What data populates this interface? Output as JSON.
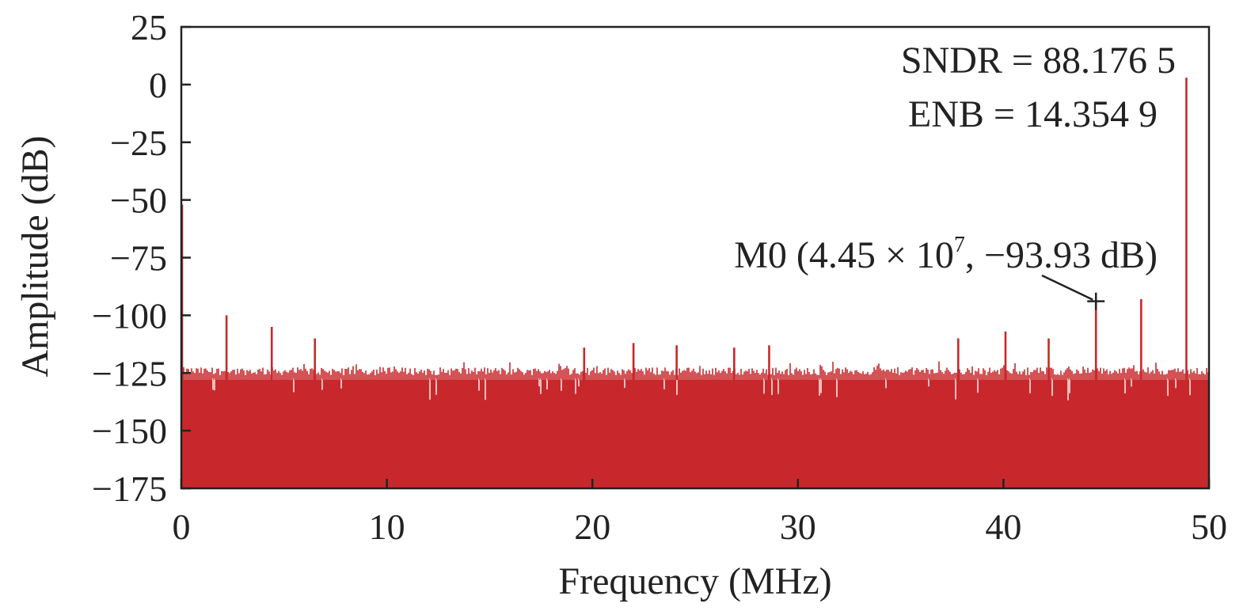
{
  "chart_data": {
    "type": "bar",
    "title": "",
    "xlabel": "Frequency (MHz)",
    "ylabel": "Amplitude (dB)",
    "xlim": [
      0,
      50
    ],
    "ylim": [
      -175,
      25
    ],
    "x_ticks": [
      0,
      10,
      20,
      30,
      40,
      50
    ],
    "y_ticks": [
      25,
      0,
      -25,
      -50,
      -75,
      -100,
      -125,
      -150,
      -175
    ],
    "x_tick_labels": [
      "0",
      "10",
      "20",
      "30",
      "40",
      "50"
    ],
    "y_tick_labels": [
      "25",
      "0",
      "−25",
      "−50",
      "−75",
      "−100",
      "−125",
      "−150",
      "−175"
    ],
    "grid": false,
    "bar_color": "#c8282b",
    "noise_floor_db": -128,
    "spurs": [
      {
        "x": 0.0,
        "y": -52
      },
      {
        "x": 2.2,
        "y": -100
      },
      {
        "x": 4.4,
        "y": -105
      },
      {
        "x": 6.5,
        "y": -110
      },
      {
        "x": 19.6,
        "y": -114
      },
      {
        "x": 22.0,
        "y": -112
      },
      {
        "x": 24.1,
        "y": -113
      },
      {
        "x": 26.9,
        "y": -114
      },
      {
        "x": 28.6,
        "y": -113
      },
      {
        "x": 37.8,
        "y": -110
      },
      {
        "x": 40.1,
        "y": -107
      },
      {
        "x": 42.2,
        "y": -110
      },
      {
        "x": 44.5,
        "y": -93.93
      },
      {
        "x": 46.7,
        "y": -93
      },
      {
        "x": 48.9,
        "y": 3
      }
    ],
    "annotations": {
      "sndr": "SNDR = 88.176 5",
      "enb": "ENB = 14.354 9",
      "marker_main": "M0 (4.45 × 10",
      "marker_exp": "7",
      "marker_tail": ", −93.93 dB)",
      "marker_x": 44.5,
      "marker_y": -93.93
    }
  }
}
